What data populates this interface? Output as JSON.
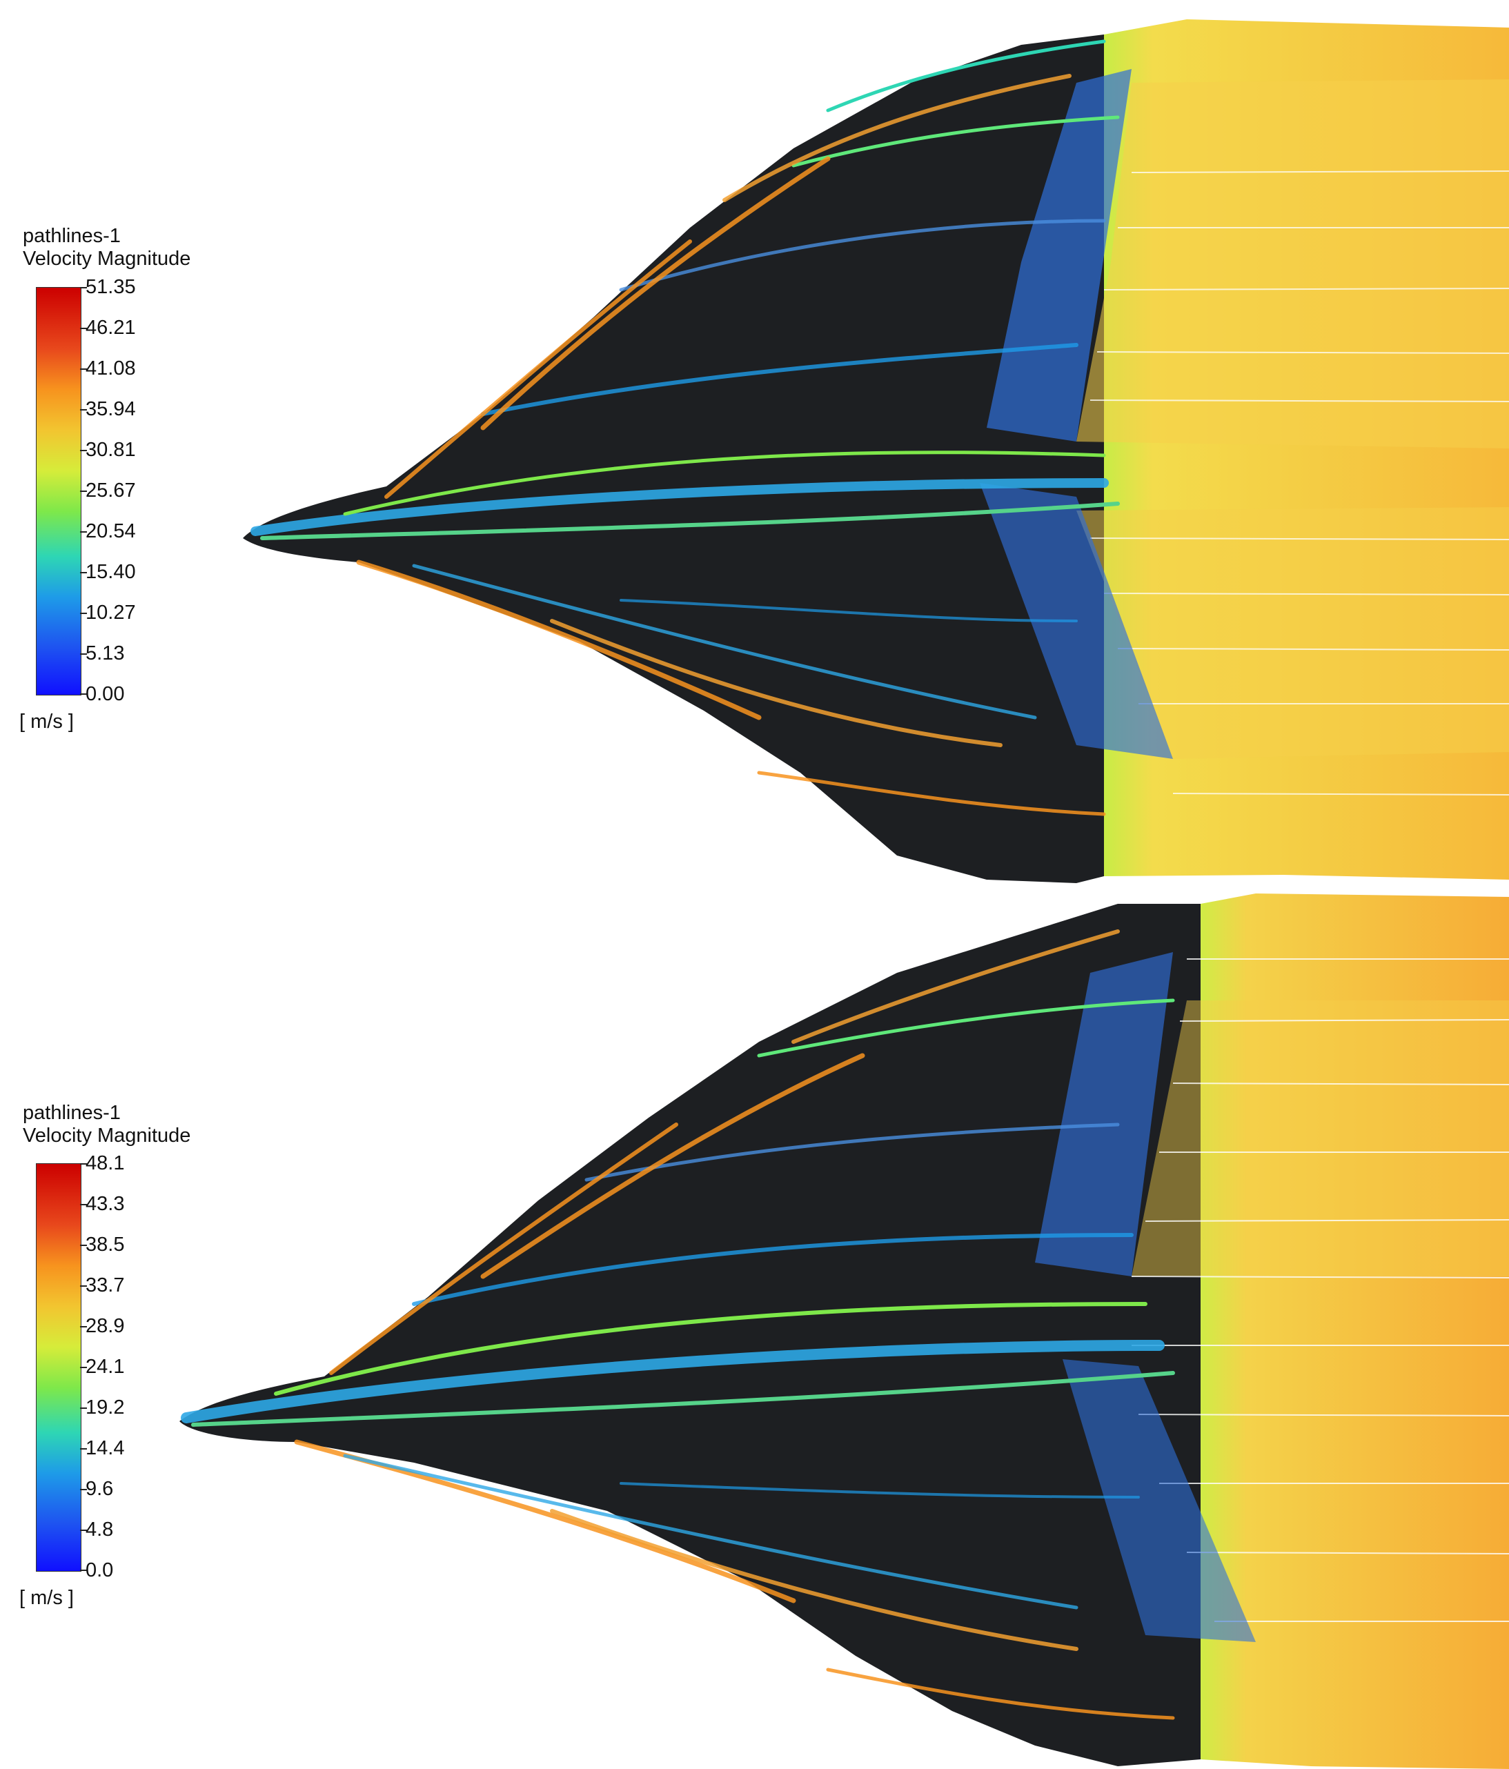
{
  "panels": [
    {
      "legend": {
        "title_line1": "pathlines-1",
        "title_line2": "Velocity Magnitude",
        "ticks": [
          "51.35",
          "46.21",
          "41.08",
          "35.94",
          "30.81",
          "25.67",
          "20.54",
          "15.40",
          "10.27",
          "5.13",
          "0.00"
        ],
        "units": "[ m/s ]",
        "max": 51.35,
        "min": 0.0
      }
    },
    {
      "legend": {
        "title_line1": "pathlines-1",
        "title_line2": "Velocity Magnitude",
        "ticks": [
          "48.1",
          "43.3",
          "38.5",
          "33.7",
          "28.9",
          "24.1",
          "19.2",
          "14.4",
          "9.6",
          "4.8",
          "0.0"
        ],
        "units": "[ m/s ]",
        "max": 48.1,
        "min": 0.0
      }
    }
  ],
  "colormap": [
    "#1010ff",
    "#1e55f0",
    "#1e9be8",
    "#2ed6b4",
    "#7ee84a",
    "#d6ec3a",
    "#f2c530",
    "#f7931e",
    "#e8481c",
    "#cc0000"
  ]
}
